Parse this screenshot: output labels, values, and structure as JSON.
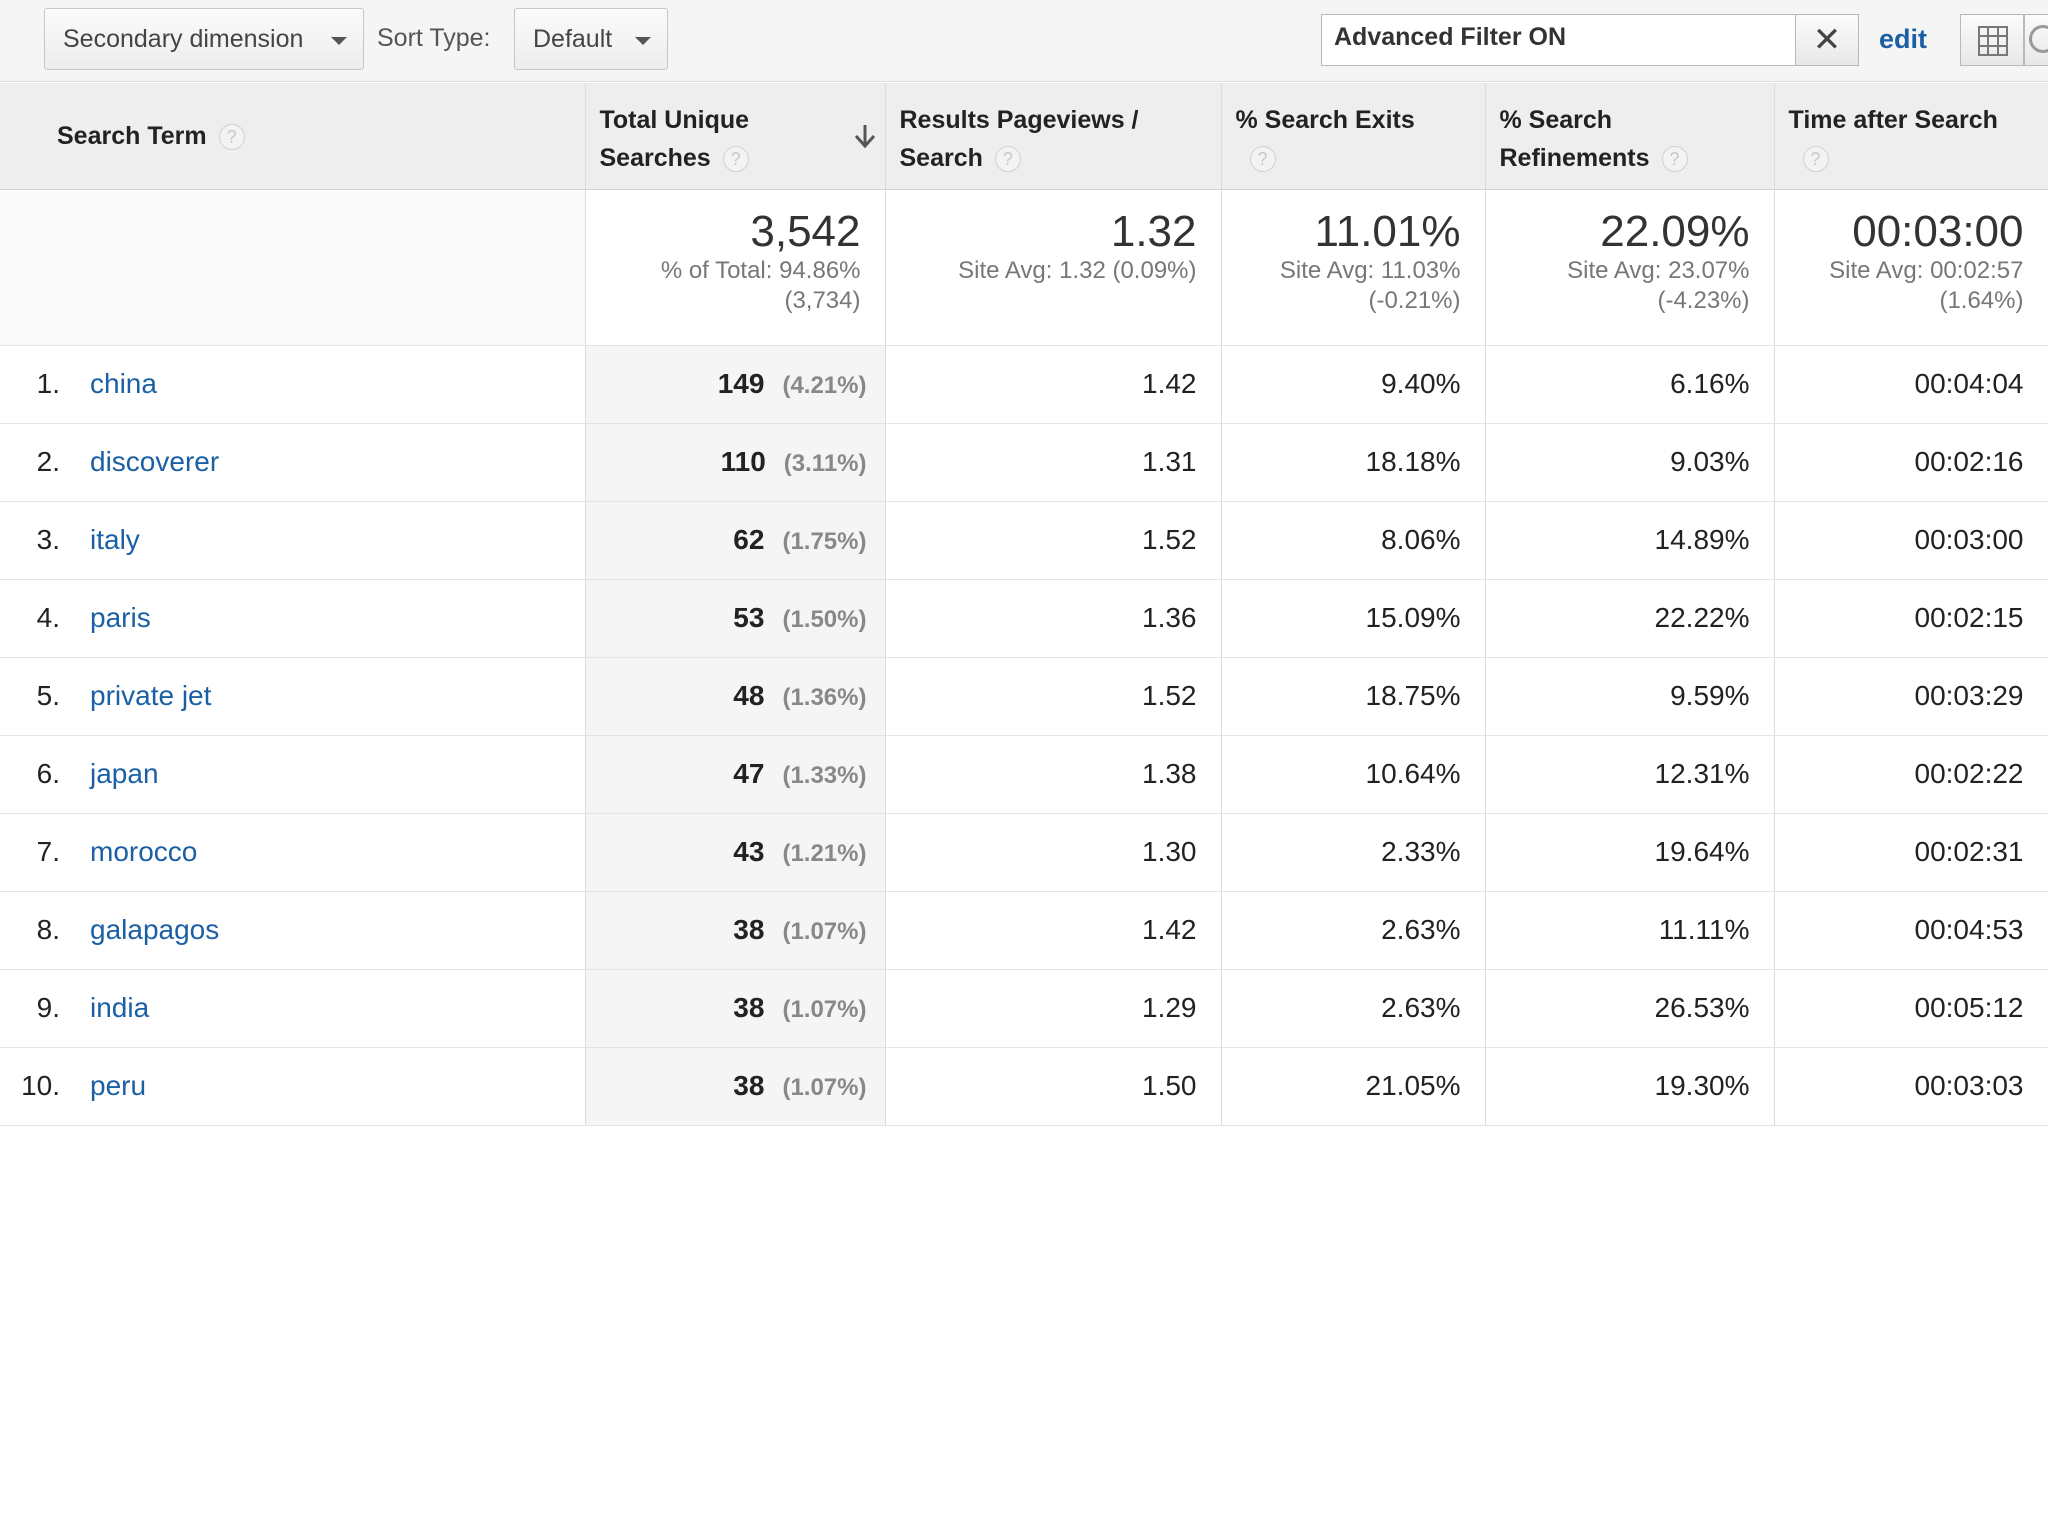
{
  "toolbar": {
    "secondary_dimension_label": "Secondary dimension",
    "sort_type_label": "Sort Type:",
    "sort_type_value": "Default",
    "filter_text": "Advanced Filter ON",
    "clear_symbol": "✕",
    "edit_label": "edit"
  },
  "headers": {
    "search_term": "Search Term",
    "unique_searches_1": "Total Unique",
    "unique_searches_2": "Searches",
    "pageviews_1": "Results Pageviews /",
    "pageviews_2": "Search",
    "exits": "% Search Exits",
    "refinements_1": "% Search",
    "refinements_2": "Refinements",
    "time": "Time after Search",
    "help": "?"
  },
  "summary": {
    "unique": {
      "value": "3,542",
      "line1": "% of Total: 94.86%",
      "line2": "(3,734)"
    },
    "pageviews": {
      "value": "1.32",
      "line1": "Site Avg: 1.32 (0.09%)"
    },
    "exits": {
      "value": "11.01%",
      "line1": "Site Avg: 11.03%",
      "line2": "(-0.21%)"
    },
    "refinements": {
      "value": "22.09%",
      "line1": "Site Avg: 23.07%",
      "line2": "(-4.23%)"
    },
    "time": {
      "value": "00:03:00",
      "line1": "Site Avg: 00:02:57",
      "line2": "(1.64%)"
    }
  },
  "rows": [
    {
      "n": "1.",
      "term": "china",
      "unique": "149",
      "share": "(4.21%)",
      "pv": "1.42",
      "exits": "9.40%",
      "ref": "6.16%",
      "time": "00:04:04"
    },
    {
      "n": "2.",
      "term": "discoverer",
      "unique": "110",
      "share": "(3.11%)",
      "pv": "1.31",
      "exits": "18.18%",
      "ref": "9.03%",
      "time": "00:02:16"
    },
    {
      "n": "3.",
      "term": "italy",
      "unique": "62",
      "share": "(1.75%)",
      "pv": "1.52",
      "exits": "8.06%",
      "ref": "14.89%",
      "time": "00:03:00"
    },
    {
      "n": "4.",
      "term": "paris",
      "unique": "53",
      "share": "(1.50%)",
      "pv": "1.36",
      "exits": "15.09%",
      "ref": "22.22%",
      "time": "00:02:15"
    },
    {
      "n": "5.",
      "term": "private jet",
      "unique": "48",
      "share": "(1.36%)",
      "pv": "1.52",
      "exits": "18.75%",
      "ref": "9.59%",
      "time": "00:03:29"
    },
    {
      "n": "6.",
      "term": "japan",
      "unique": "47",
      "share": "(1.33%)",
      "pv": "1.38",
      "exits": "10.64%",
      "ref": "12.31%",
      "time": "00:02:22"
    },
    {
      "n": "7.",
      "term": "morocco",
      "unique": "43",
      "share": "(1.21%)",
      "pv": "1.30",
      "exits": "2.33%",
      "ref": "19.64%",
      "time": "00:02:31"
    },
    {
      "n": "8.",
      "term": "galapagos",
      "unique": "38",
      "share": "(1.07%)",
      "pv": "1.42",
      "exits": "2.63%",
      "ref": "11.11%",
      "time": "00:04:53"
    },
    {
      "n": "9.",
      "term": "india",
      "unique": "38",
      "share": "(1.07%)",
      "pv": "1.29",
      "exits": "2.63%",
      "ref": "26.53%",
      "time": "00:05:12"
    },
    {
      "n": "10.",
      "term": "peru",
      "unique": "38",
      "share": "(1.07%)",
      "pv": "1.50",
      "exits": "21.05%",
      "ref": "19.30%",
      "time": "00:03:03"
    }
  ]
}
